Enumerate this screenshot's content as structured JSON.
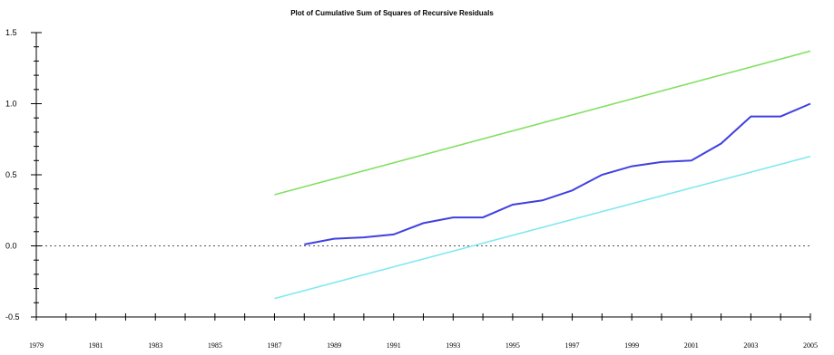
{
  "chart_data": {
    "type": "line",
    "title": "Plot of Cumulative Sum of Squares of Recursive Residuals",
    "xlabel": "",
    "ylabel": "",
    "xlim": [
      1979,
      2005
    ],
    "ylim": [
      -0.5,
      1.5
    ],
    "yticks": [
      -0.5,
      0.0,
      0.5,
      1.0,
      1.5
    ],
    "ytick_labels": [
      "-0.5",
      "0.0",
      "0.5",
      "1.0",
      "1.5"
    ],
    "xticks": [
      1979,
      1981,
      1983,
      1985,
      1987,
      1989,
      1991,
      1993,
      1995,
      1997,
      1999,
      2001,
      2003,
      2005
    ],
    "xtick_labels": [
      "1979",
      "1981",
      "1983",
      "1985",
      "1987",
      "1989",
      "1991",
      "1993",
      "1995",
      "1997",
      "1999",
      "2001",
      "2003",
      "2005"
    ],
    "reference_line": {
      "y": 0.0,
      "style": "dotted",
      "color": "#555555"
    },
    "series": [
      {
        "color": "#80e060",
        "x": [
          1987,
          2005
        ],
        "y": [
          0.36,
          1.37
        ]
      },
      {
        "color": "#4040e0",
        "x": [
          1988,
          1989,
          1990,
          1991,
          1992,
          1993,
          1994,
          1995,
          1996,
          1997,
          1998,
          1999,
          2000,
          2001,
          2002,
          2003,
          2004,
          2005
        ],
        "y": [
          0.01,
          0.05,
          0.06,
          0.08,
          0.16,
          0.2,
          0.2,
          0.29,
          0.32,
          0.39,
          0.5,
          0.56,
          0.59,
          0.6,
          0.72,
          0.91,
          0.91,
          1.0
        ]
      },
      {
        "color": "#80e8f0",
        "x": [
          1987,
          2005
        ],
        "y": [
          -0.37,
          0.63
        ]
      }
    ]
  }
}
